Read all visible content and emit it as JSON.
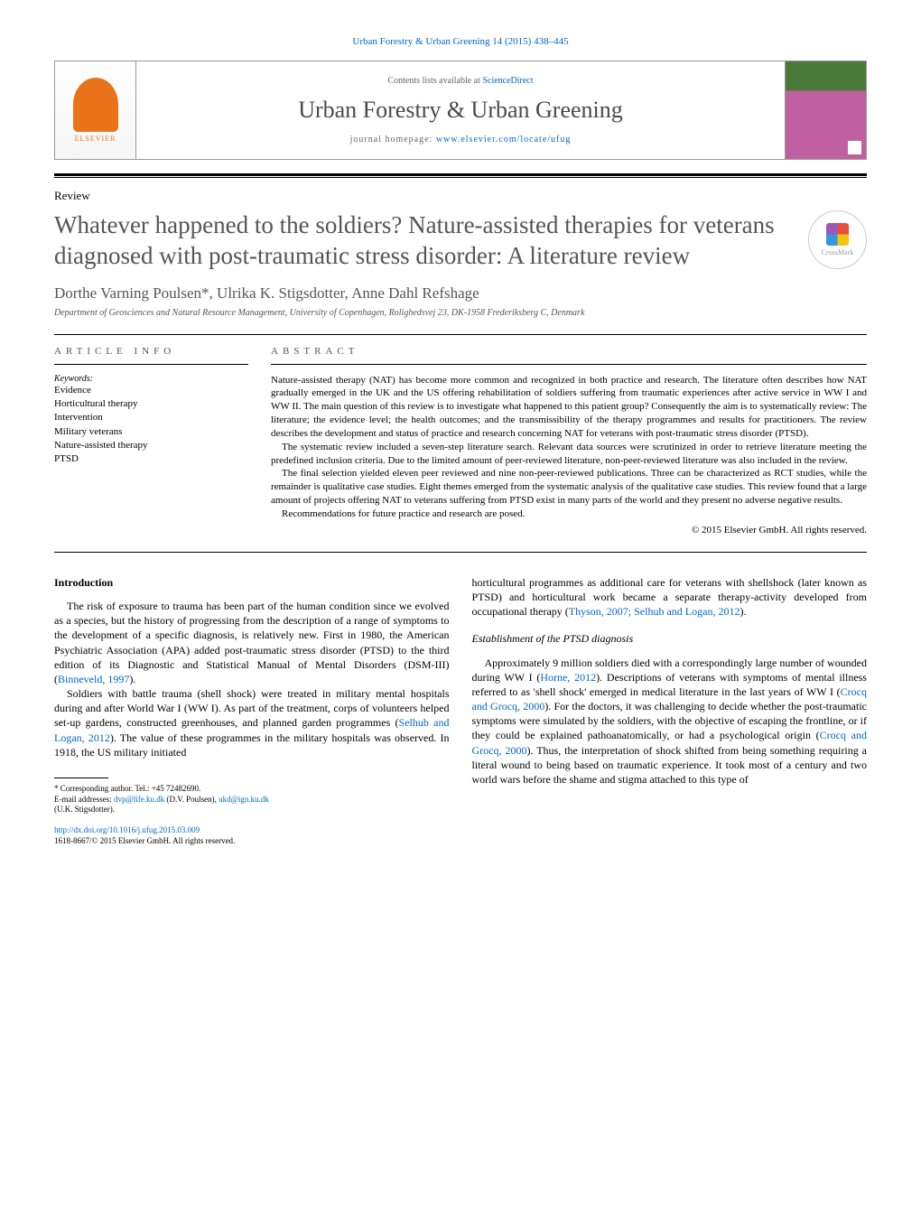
{
  "journal_ref": "Urban Forestry & Urban Greening 14 (2015) 438–445",
  "header": {
    "contents_prefix": "Contents lists available at ",
    "contents_link": "ScienceDirect",
    "journal_name": "Urban Forestry & Urban Greening",
    "homepage_prefix": "journal homepage: ",
    "homepage_link": "www.elsevier.com/locate/ufug",
    "elsevier": "ELSEVIER"
  },
  "article_type": "Review",
  "title": "Whatever happened to the soldiers? Nature-assisted therapies for veterans diagnosed with post-traumatic stress disorder: A literature review",
  "crossmark": "CrossMark",
  "authors": "Dorthe Varning Poulsen*, Ulrika K. Stigsdotter, Anne Dahl Refshage",
  "affiliation": "Department of Geosciences and Natural Resource Management, University of Copenhagen, Rolighedsvej 23, DK-1958 Frederiksberg C, Denmark",
  "info_label": "article info",
  "abstract_label": "abstract",
  "keywords_label": "Keywords:",
  "keywords": [
    "Evidence",
    "Horticultural therapy",
    "Intervention",
    "Military veterans",
    "Nature-assisted therapy",
    "PTSD"
  ],
  "abstract": {
    "p1": "Nature-assisted therapy (NAT) has become more common and recognized in both practice and research. The literature often describes how NAT gradually emerged in the UK and the US offering rehabilitation of soldiers suffering from traumatic experiences after active service in WW I and WW II. The main question of this review is to investigate what happened to this patient group? Consequently the aim is to systematically review: The literature; the evidence level; the health outcomes; and the transmissibility of the therapy programmes and results for practitioners. The review describes the development and status of practice and research concerning NAT for veterans with post-traumatic stress disorder (PTSD).",
    "p2": "The systematic review included a seven-step literature search. Relevant data sources were scrutinized in order to retrieve literature meeting the predefined inclusion criteria. Due to the limited amount of peer-reviewed literature, non-peer-reviewed literature was also included in the review.",
    "p3": "The final selection yielded eleven peer reviewed and nine non-peer-reviewed publications. Three can be characterized as RCT studies, while the remainder is qualitative case studies. Eight themes emerged from the systematic analysis of the qualitative case studies. This review found that a large amount of projects offering NAT to veterans suffering from PTSD exist in many parts of the world and they present no adverse negative results.",
    "p4": "Recommendations for future practice and research are posed."
  },
  "copyright": "© 2015 Elsevier GmbH. All rights reserved.",
  "body": {
    "intro_heading": "Introduction",
    "col1_p1": "The risk of exposure to trauma has been part of the human condition since we evolved as a species, but the history of progressing from the description of a range of symptoms to the development of a specific diagnosis, is relatively new. First in 1980, the American Psychiatric Association (APA) added post-traumatic stress disorder (PTSD) to the third edition of its Diagnostic and Statistical Manual of Mental Disorders (DSM-III) (",
    "col1_cite1": "Binneveld, 1997",
    "col1_p1b": ").",
    "col1_p2": "Soldiers with battle trauma (shell shock) were treated in military mental hospitals during and after World War I (WW I). As part of the treatment, corps of volunteers helped set-up gardens, constructed greenhouses, and planned garden programmes (",
    "col1_cite2": "Selhub and Logan, 2012",
    "col1_p2b": "). The value of these programmes in the military hospitals was observed. In 1918, the US military initiated",
    "col2_p1": "horticultural programmes as additional care for veterans with shellshock (later known as PTSD) and horticultural work became a separate therapy-activity developed from occupational therapy (",
    "col2_cite1": "Thyson, 2007; Selhub and Logan, 2012",
    "col2_p1b": ").",
    "subheading": "Establishment of the PTSD diagnosis",
    "col2_p2": "Approximately 9 million soldiers died with a correspondingly large number of wounded during WW I (",
    "col2_cite2": "Horne, 2012",
    "col2_p2b": "). Descriptions of veterans with symptoms of mental illness referred to as 'shell shock' emerged in medical literature in the last years of WW I (",
    "col2_cite3": "Crocq and Grocq, 2000",
    "col2_p2c": "). For the doctors, it was challenging to decide whether the post-traumatic symptoms were simulated by the soldiers, with the objective of escaping the frontline, or if they could be explained pathoanatomically, or had a psychological origin (",
    "col2_cite4": "Crocq and Grocq, 2000",
    "col2_p2d": "). Thus, the interpretation of shock shifted from being something requiring a literal wound to being based on traumatic experience. It took most of a century and two world wars before the shame and stigma attached to this type of"
  },
  "footnote": {
    "corr": "* Corresponding author. Tel.: +45 72482690.",
    "email_label": "E-mail addresses: ",
    "email1": "dvp@life.ku.dk",
    "email1_name": " (D.V. Poulsen), ",
    "email2": "ukd@ign.ku.dk",
    "email2_name": "(U.K. Stigsdotter)."
  },
  "doi": {
    "link": "http://dx.doi.org/10.1016/j.ufug.2015.03.009",
    "issn": "1618-8667/© 2015 Elsevier GmbH. All rights reserved."
  },
  "colors": {
    "link": "#0066cc",
    "text_gray": "#555555",
    "elsevier_orange": "#e8731a"
  }
}
